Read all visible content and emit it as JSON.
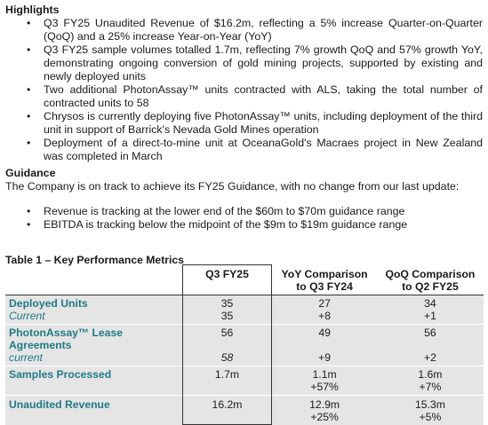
{
  "highlights": {
    "title": "Highlights",
    "items": [
      "Q3 FY25 Unaudited Revenue of $16.2m, reflecting a 5% increase Quarter-on-Quarter (QoQ) and a 25% increase Year-on-Year (YoY)",
      "Q3 FY25 sample volumes totalled 1.7m, reflecting 7% growth QoQ and 57% growth YoY, demonstrating ongoing conversion of gold mining projects, supported by existing and newly deployed units",
      "Two additional PhotonAssay™ units contracted with ALS, taking the total number of contracted units to 58",
      "Chrysos is currently deploying five PhotonAssay™ units, including deployment of the third unit in support of Barrick's Nevada Gold Mines operation",
      "Deployment of a direct-to-mine unit at OceanaGold's Macraes project in New Zealand was completed in March"
    ]
  },
  "guidance": {
    "title": "Guidance",
    "intro": "The Company is on track to achieve its FY25 Guidance, with no change from our last update:",
    "items": [
      "Revenue is tracking at the lower end of the $60m to $70m guidance range",
      "EBITDA is tracking below the midpoint of the $9m to $19m guidance range"
    ]
  },
  "table": {
    "title": "Table 1 – Key Performance Metrics",
    "headers": {
      "col1": "",
      "col2": "Q3 FY25",
      "col3": "YoY Comparison to Q3 FY24",
      "col4": "QoQ Comparison to Q2 FY25"
    },
    "rows": {
      "deployed": {
        "label": "Deployed Units",
        "sub_label": "Current",
        "q3": "35",
        "q3_sub": "35",
        "yoy": "27",
        "yoy_sub": "+8",
        "qoq": "34",
        "qoq_sub": "+1"
      },
      "lease": {
        "label": "PhotonAssay™ Lease Agreements",
        "sub_label": "current",
        "q3": "56",
        "q3_sub": "58",
        "yoy": "49",
        "yoy_sub": "+9",
        "qoq": "56",
        "qoq_sub": "+2"
      },
      "samples": {
        "label": "Samples Processed",
        "q3": "1.7m",
        "yoy": "1.1m",
        "yoy_sub": "+57%",
        "qoq": "1.6m",
        "qoq_sub": "+7%"
      },
      "revenue": {
        "label": "Unaudited Revenue",
        "q3": "16.2m",
        "yoy": "12.9m",
        "yoy_sub": "+25%",
        "qoq": "15.3m",
        "qoq_sub": "+5%"
      }
    }
  }
}
